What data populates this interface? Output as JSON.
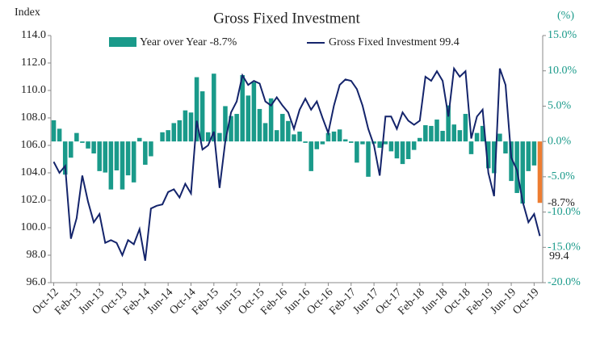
{
  "chart_data": {
    "type": "bar_line",
    "title": "Gross Fixed Investment",
    "y_label": "Index",
    "y2_label": "(%)",
    "categories": [
      "Oct-12",
      null,
      null,
      null,
      "Feb-13",
      null,
      null,
      null,
      "Jun-13",
      null,
      null,
      null,
      "Oct-13",
      null,
      null,
      null,
      "Feb-14",
      null,
      null,
      null,
      "Jun-14",
      null,
      null,
      null,
      "Oct-14",
      null,
      null,
      null,
      "Feb-15",
      null,
      null,
      null,
      "Jun-15",
      null,
      null,
      null,
      "Oct-15",
      null,
      null,
      null,
      "Feb-16",
      null,
      null,
      null,
      "Jun-16",
      null,
      null,
      null,
      "Oct-16",
      null,
      null,
      null,
      "Feb-17",
      null,
      null,
      null,
      "Jun-17",
      null,
      null,
      null,
      "Oct-17",
      null,
      null,
      null,
      "Feb-18",
      null,
      null,
      null,
      "Jun-18",
      null,
      null,
      null,
      "Oct-18",
      null,
      null,
      null,
      "Feb-19",
      null,
      null,
      null,
      "Jun-19",
      null,
      null,
      null,
      "Oct-19",
      null
    ],
    "series": [
      {
        "name": "Year over Year -8.7%",
        "type": "bar",
        "axis": "y2",
        "color": "#1a9a8a",
        "last_color": "#ed7d31",
        "values": [
          3.0,
          1.8,
          -4.7,
          -2.3,
          1.2,
          -0.2,
          -1.0,
          -1.7,
          -4.2,
          -4.4,
          -6.8,
          -4.1,
          -6.8,
          -4.8,
          -5.8,
          0.5,
          -3.3,
          -2.1,
          0.0,
          1.3,
          1.6,
          2.6,
          3.0,
          4.4,
          4.1,
          9.1,
          7.1,
          1.3,
          9.6,
          1.2,
          5.0,
          3.6,
          3.9,
          9.4,
          6.5,
          8.4,
          4.6,
          2.6,
          6.1,
          1.6,
          3.9,
          2.9,
          1.0,
          1.4,
          -0.2,
          -4.2,
          -1.1,
          -0.4,
          1.2,
          1.4,
          1.7,
          0.3,
          -0.2,
          -3.0,
          -0.4,
          -5.0,
          -0.3,
          -0.9,
          -0.4,
          -1.4,
          -2.4,
          -3.2,
          -2.5,
          -1.2,
          0.5,
          2.3,
          2.2,
          3.1,
          1.5,
          5.1,
          2.4,
          1.6,
          3.9,
          -1.8,
          1.2,
          2.2,
          -3.8,
          -4.5,
          1.1,
          -1.7,
          -5.6,
          -7.3,
          -8.8,
          -4.2,
          -3.4,
          -8.7
        ]
      },
      {
        "name": "Gross Fixed Investment 99.4",
        "type": "line",
        "axis": "y",
        "color": "#14246b",
        "values": [
          104.8,
          104.0,
          104.5,
          99.2,
          100.7,
          103.8,
          101.9,
          100.4,
          101.0,
          98.9,
          99.1,
          98.9,
          98.0,
          99.1,
          98.8,
          99.9,
          97.6,
          101.4,
          101.6,
          101.7,
          102.6,
          102.8,
          102.2,
          103.2,
          102.5,
          107.8,
          105.7,
          106.0,
          107.0,
          102.9,
          106.3,
          108.4,
          109.2,
          111.1,
          110.4,
          110.7,
          110.5,
          109.2,
          108.9,
          109.5,
          108.9,
          108.4,
          107.2,
          108.6,
          109.4,
          108.6,
          109.2,
          108.0,
          106.9,
          108.9,
          110.4,
          110.8,
          110.7,
          110.1,
          108.9,
          107.2,
          106.0,
          103.8,
          108.1,
          108.1,
          107.2,
          108.4,
          107.8,
          107.5,
          107.8,
          111.0,
          110.7,
          111.4,
          110.7,
          108.1,
          111.6,
          111.0,
          111.4,
          106.5,
          108.1,
          108.6,
          104.0,
          102.3,
          111.6,
          110.4,
          105.1,
          104.2,
          101.9,
          100.4,
          101.0,
          99.4
        ]
      }
    ],
    "annotations": [
      {
        "text": "-8.7%",
        "color": "#ed7d31"
      },
      {
        "text": "99.4",
        "color": "#14246b"
      }
    ],
    "ylim": [
      96,
      114
    ],
    "yticks": [
      {
        "value": 96,
        "label": "96.0"
      },
      {
        "value": 98,
        "label": "98.0"
      },
      {
        "value": 100,
        "label": "100.0"
      },
      {
        "value": 102,
        "label": "102.0"
      },
      {
        "value": 104,
        "label": "104.0"
      },
      {
        "value": 106,
        "label": "106.0"
      },
      {
        "value": 108,
        "label": "108.0"
      },
      {
        "value": 110,
        "label": "110.0"
      },
      {
        "value": 112,
        "label": "112.0"
      },
      {
        "value": 114,
        "label": "114.0"
      }
    ],
    "y2lim": [
      -20,
      15
    ],
    "y2ticks": [
      {
        "value": -20,
        "label": "-20.0%"
      },
      {
        "value": -15,
        "label": "-15.0%"
      },
      {
        "value": -10,
        "label": "-10.0%"
      },
      {
        "value": -5,
        "label": "-5.0%"
      },
      {
        "value": 0,
        "label": "0.0%"
      },
      {
        "value": 5,
        "label": "5.0%"
      },
      {
        "value": 10,
        "label": "10.0%"
      },
      {
        "value": 15,
        "label": "15.0%"
      }
    ],
    "grid": false
  }
}
